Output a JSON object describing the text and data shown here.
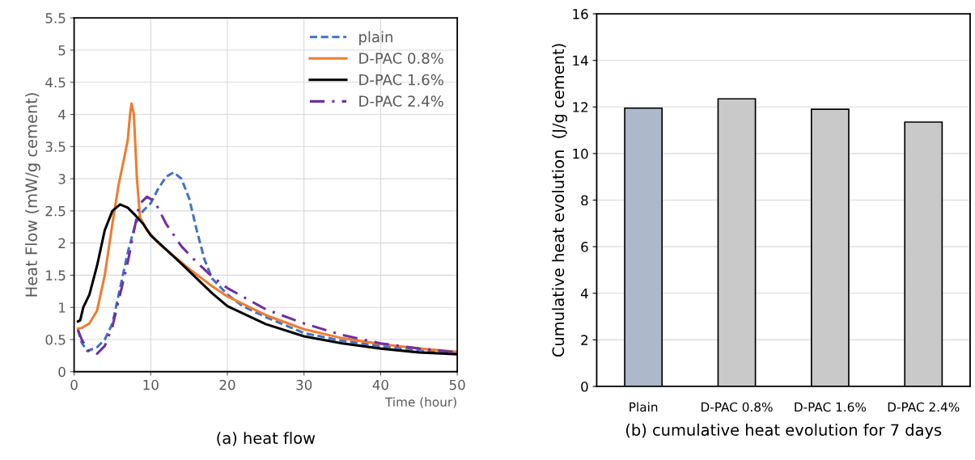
{
  "chart_data": [
    {
      "type": "line",
      "title": "(a) heat flow",
      "xlabel": "Time (hour)",
      "ylabel": "Heat Flow (mW/g cement)",
      "xlim": [
        0,
        50
      ],
      "xticks": [
        0,
        10,
        20,
        30,
        40,
        50
      ],
      "ylim": [
        0,
        5.5
      ],
      "yticks": [
        0,
        0.5,
        1,
        1.5,
        2,
        2.5,
        3,
        3.5,
        4,
        4.5,
        5,
        5.5
      ],
      "grid": true,
      "legend": "top right",
      "series": [
        {
          "name": "plain",
          "color": "#4472c4",
          "line_style": "dashed",
          "x": [
            0.5,
            1,
            1.7,
            3,
            4,
            5,
            6,
            7,
            8,
            9,
            10,
            11,
            12,
            13,
            14,
            15,
            16,
            17,
            18,
            20,
            22,
            25,
            30,
            35,
            40,
            45,
            50
          ],
          "values": [
            0.65,
            0.45,
            0.32,
            0.38,
            0.5,
            0.75,
            1.3,
            1.85,
            2.3,
            2.5,
            2.62,
            2.85,
            3.03,
            3.1,
            3.0,
            2.7,
            2.2,
            1.75,
            1.45,
            1.2,
            1.02,
            0.85,
            0.6,
            0.48,
            0.4,
            0.34,
            0.3
          ]
        },
        {
          "name": "D-PAC 0.8%",
          "color": "#ed7d31",
          "line_style": "solid",
          "x": [
            0.5,
            1,
            2,
            3,
            4,
            5,
            5.8,
            6.5,
            7,
            7.3,
            7.5,
            7.8,
            8.2,
            8.6,
            9.5,
            11,
            13,
            15,
            18,
            20,
            25,
            30,
            35,
            40,
            45,
            50
          ],
          "values": [
            0.67,
            0.68,
            0.75,
            0.95,
            1.5,
            2.3,
            2.9,
            3.3,
            3.6,
            4.0,
            4.17,
            4.0,
            3.0,
            2.4,
            2.2,
            2.0,
            1.8,
            1.6,
            1.33,
            1.17,
            0.88,
            0.66,
            0.52,
            0.43,
            0.36,
            0.31
          ]
        },
        {
          "name": "D-PAC 1.6%",
          "color": "#000000",
          "line_style": "solid",
          "x": [
            0.5,
            0.8,
            1.2,
            2,
            3,
            4,
            5,
            6,
            7,
            8,
            9,
            10,
            12,
            14,
            16,
            18,
            20,
            25,
            30,
            35,
            40,
            45,
            50
          ],
          "values": [
            0.78,
            0.8,
            1.0,
            1.2,
            1.65,
            2.2,
            2.5,
            2.6,
            2.55,
            2.43,
            2.3,
            2.12,
            1.9,
            1.68,
            1.45,
            1.22,
            1.02,
            0.74,
            0.55,
            0.44,
            0.36,
            0.3,
            0.27
          ]
        },
        {
          "name": "D-PAC 2.4%",
          "color": "#7030a0",
          "line_style": "dashdot",
          "x": [
            0.5,
            1,
            2,
            3,
            4,
            5,
            6,
            7,
            8,
            8.5,
            9.5,
            10.5,
            12,
            14,
            16,
            18,
            20,
            25,
            30,
            35,
            40,
            45,
            50
          ],
          "values": [
            0.65,
            0.5,
            0.3,
            0.28,
            0.4,
            0.7,
            1.2,
            1.7,
            2.3,
            2.6,
            2.72,
            2.65,
            2.3,
            1.95,
            1.7,
            1.48,
            1.3,
            0.97,
            0.75,
            0.57,
            0.44,
            0.36,
            0.3
          ]
        }
      ]
    },
    {
      "type": "bar",
      "title": "(b) cumulative heat evolution for 7 days",
      "ylabel": "Cumulative heat evolution  (J/g cement)",
      "categories": [
        "Plain",
        "D-PAC 0.8%",
        "D-PAC 1.6%",
        "D-PAC 2.4%"
      ],
      "values": [
        11.95,
        12.35,
        11.9,
        11.35
      ],
      "colors": [
        "#adb9ca",
        "#c9c9c9",
        "#c9c9c9",
        "#c9c9c9"
      ],
      "ylim": [
        0,
        16
      ],
      "yticks": [
        0,
        2,
        4,
        6,
        8,
        10,
        12,
        14,
        16
      ],
      "grid": "y"
    }
  ]
}
